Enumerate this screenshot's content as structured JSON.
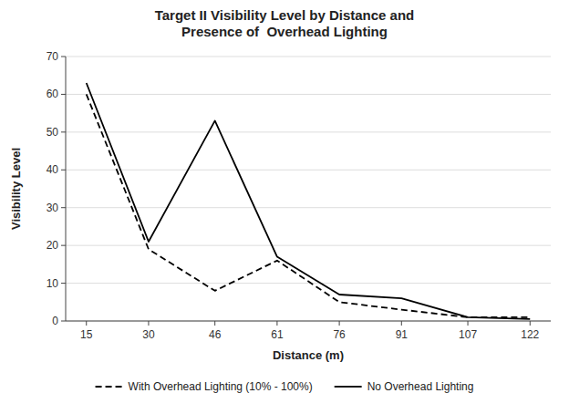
{
  "chart_data": {
    "type": "line",
    "title": "Target II Visibility Level by Distance and\nPresence of  Overhead Lighting",
    "x_label": "Distance (m)",
    "y_label": "Visibility Level",
    "x": [
      15,
      30,
      46,
      61,
      76,
      91,
      107,
      122
    ],
    "series": [
      {
        "name": "With Overhead Lighting (10% - 100%)",
        "color": "#000000",
        "line_style": "dashed",
        "values": [
          60,
          19,
          8,
          16,
          5,
          3,
          1,
          1
        ]
      },
      {
        "name": "No Overhead Lighting",
        "color": "#000000",
        "line_style": "solid",
        "values": [
          63,
          21,
          53,
          17,
          7,
          6,
          1,
          0.5
        ]
      }
    ],
    "xlim": [
      10,
      127
    ],
    "ylim": [
      0,
      70
    ],
    "xticks": [
      15,
      30,
      46,
      61,
      76,
      91,
      107,
      122
    ],
    "yticks": [
      0,
      10,
      20,
      30,
      40,
      50,
      60,
      70
    ],
    "grid": "y",
    "legend": "bottom"
  }
}
